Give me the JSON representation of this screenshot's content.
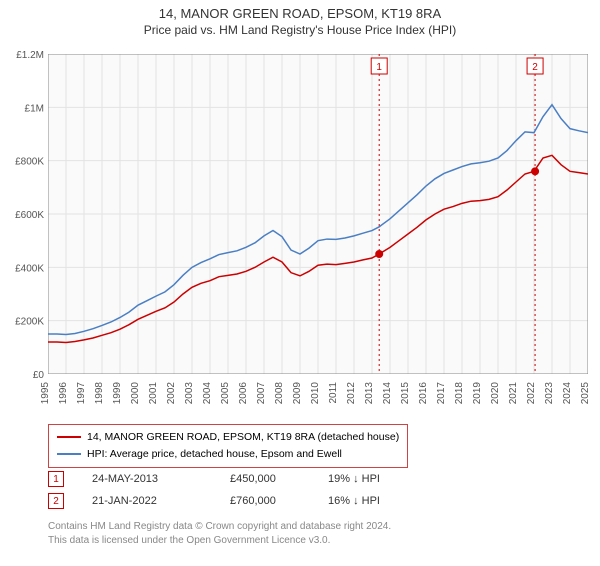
{
  "title": "14, MANOR GREEN ROAD, EPSOM, KT19 8RA",
  "subtitle": "Price paid vs. HM Land Registry's House Price Index (HPI)",
  "chart": {
    "type": "line",
    "background_color": "#fafafa",
    "grid_color": "#e3e3e3",
    "axis_color": "#888888",
    "y": {
      "min": 0,
      "max": 1200000,
      "step": 200000,
      "labels": [
        "£0",
        "£200K",
        "£400K",
        "£600K",
        "£800K",
        "£1M",
        "£1.2M"
      ],
      "label_fontsize": 10,
      "label_color": "#555555"
    },
    "x": {
      "min": 1995,
      "max": 2025,
      "step": 1,
      "labels": [
        "1995",
        "1996",
        "1997",
        "1998",
        "1999",
        "2000",
        "2001",
        "2002",
        "2003",
        "2004",
        "2005",
        "2006",
        "2007",
        "2008",
        "2009",
        "2010",
        "2011",
        "2012",
        "2013",
        "2014",
        "2015",
        "2016",
        "2017",
        "2018",
        "2019",
        "2020",
        "2021",
        "2022",
        "2023",
        "2024",
        "2025"
      ],
      "label_fontsize": 10,
      "label_color": "#555555",
      "rotate": -90
    },
    "series": [
      {
        "name": "property",
        "legend": "14, MANOR GREEN ROAD, EPSOM, KT19 8RA (detached house)",
        "color": "#cc0000",
        "line_width": 1.5,
        "data": [
          [
            1995,
            120000
          ],
          [
            1995.5,
            120000
          ],
          [
            1996,
            118000
          ],
          [
            1996.5,
            122000
          ],
          [
            1997,
            128000
          ],
          [
            1997.5,
            135000
          ],
          [
            1998,
            145000
          ],
          [
            1998.5,
            155000
          ],
          [
            1999,
            168000
          ],
          [
            1999.5,
            185000
          ],
          [
            2000,
            205000
          ],
          [
            2000.5,
            220000
          ],
          [
            2001,
            235000
          ],
          [
            2001.5,
            248000
          ],
          [
            2002,
            270000
          ],
          [
            2002.5,
            300000
          ],
          [
            2003,
            325000
          ],
          [
            2003.5,
            340000
          ],
          [
            2004,
            350000
          ],
          [
            2004.5,
            365000
          ],
          [
            2005,
            370000
          ],
          [
            2005.5,
            375000
          ],
          [
            2006,
            385000
          ],
          [
            2006.5,
            400000
          ],
          [
            2007,
            420000
          ],
          [
            2007.5,
            438000
          ],
          [
            2008,
            420000
          ],
          [
            2008.5,
            380000
          ],
          [
            2009,
            368000
          ],
          [
            2009.5,
            385000
          ],
          [
            2010,
            408000
          ],
          [
            2010.5,
            412000
          ],
          [
            2011,
            410000
          ],
          [
            2011.5,
            415000
          ],
          [
            2012,
            420000
          ],
          [
            2012.5,
            428000
          ],
          [
            2013,
            435000
          ],
          [
            2013.4,
            450000
          ],
          [
            2014,
            475000
          ],
          [
            2014.5,
            500000
          ],
          [
            2015,
            525000
          ],
          [
            2015.5,
            550000
          ],
          [
            2016,
            578000
          ],
          [
            2016.5,
            600000
          ],
          [
            2017,
            618000
          ],
          [
            2017.5,
            628000
          ],
          [
            2018,
            640000
          ],
          [
            2018.5,
            648000
          ],
          [
            2019,
            650000
          ],
          [
            2019.5,
            655000
          ],
          [
            2020,
            665000
          ],
          [
            2020.5,
            690000
          ],
          [
            2021,
            720000
          ],
          [
            2021.5,
            750000
          ],
          [
            2022,
            760000
          ],
          [
            2022.5,
            810000
          ],
          [
            2023,
            820000
          ],
          [
            2023.5,
            785000
          ],
          [
            2024,
            760000
          ],
          [
            2024.5,
            755000
          ],
          [
            2025,
            750000
          ]
        ]
      },
      {
        "name": "hpi",
        "legend": "HPI: Average price, detached house, Epsom and Ewell",
        "color": "#4a7fc4",
        "line_width": 1.5,
        "data": [
          [
            1995,
            150000
          ],
          [
            1995.5,
            150000
          ],
          [
            1996,
            148000
          ],
          [
            1996.5,
            152000
          ],
          [
            1997,
            160000
          ],
          [
            1997.5,
            170000
          ],
          [
            1998,
            182000
          ],
          [
            1998.5,
            195000
          ],
          [
            1999,
            212000
          ],
          [
            1999.5,
            232000
          ],
          [
            2000,
            258000
          ],
          [
            2000.5,
            275000
          ],
          [
            2001,
            292000
          ],
          [
            2001.5,
            308000
          ],
          [
            2002,
            335000
          ],
          [
            2002.5,
            370000
          ],
          [
            2003,
            400000
          ],
          [
            2003.5,
            418000
          ],
          [
            2004,
            432000
          ],
          [
            2004.5,
            448000
          ],
          [
            2005,
            455000
          ],
          [
            2005.5,
            462000
          ],
          [
            2006,
            475000
          ],
          [
            2006.5,
            492000
          ],
          [
            2007,
            518000
          ],
          [
            2007.5,
            538000
          ],
          [
            2008,
            515000
          ],
          [
            2008.5,
            465000
          ],
          [
            2009,
            450000
          ],
          [
            2009.5,
            472000
          ],
          [
            2010,
            500000
          ],
          [
            2010.5,
            506000
          ],
          [
            2011,
            505000
          ],
          [
            2011.5,
            510000
          ],
          [
            2012,
            518000
          ],
          [
            2012.5,
            528000
          ],
          [
            2013,
            538000
          ],
          [
            2013.4,
            552000
          ],
          [
            2014,
            582000
          ],
          [
            2014.5,
            612000
          ],
          [
            2015,
            642000
          ],
          [
            2015.5,
            672000
          ],
          [
            2016,
            705000
          ],
          [
            2016.5,
            732000
          ],
          [
            2017,
            752000
          ],
          [
            2017.5,
            765000
          ],
          [
            2018,
            778000
          ],
          [
            2018.5,
            788000
          ],
          [
            2019,
            792000
          ],
          [
            2019.5,
            798000
          ],
          [
            2020,
            810000
          ],
          [
            2020.5,
            838000
          ],
          [
            2021,
            875000
          ],
          [
            2021.5,
            908000
          ],
          [
            2022,
            905000
          ],
          [
            2022.5,
            965000
          ],
          [
            2023,
            1010000
          ],
          [
            2023.5,
            958000
          ],
          [
            2024,
            920000
          ],
          [
            2024.5,
            912000
          ],
          [
            2025,
            905000
          ]
        ]
      }
    ],
    "markers": [
      {
        "label": "1",
        "x": 2013.4,
        "y": 450000,
        "color": "#cc0000",
        "line_dash": "2,3"
      },
      {
        "label": "2",
        "x": 2022.06,
        "y": 760000,
        "color": "#cc0000",
        "line_dash": "2,3"
      }
    ]
  },
  "transactions": [
    {
      "marker": "1",
      "date": "24-MAY-2013",
      "price": "£450,000",
      "diff": "19% ↓ HPI"
    },
    {
      "marker": "2",
      "date": "21-JAN-2022",
      "price": "£760,000",
      "diff": "16% ↓ HPI"
    }
  ],
  "footer_lines": [
    "Contains HM Land Registry data © Crown copyright and database right 2024.",
    "This data is licensed under the Open Government Licence v3.0."
  ],
  "title_fontsize": 13,
  "subtitle_fontsize": 12,
  "legend_fontsize": 10.5,
  "trans_fontsize": 11,
  "footer_fontsize": 10,
  "footer_color": "#888888"
}
